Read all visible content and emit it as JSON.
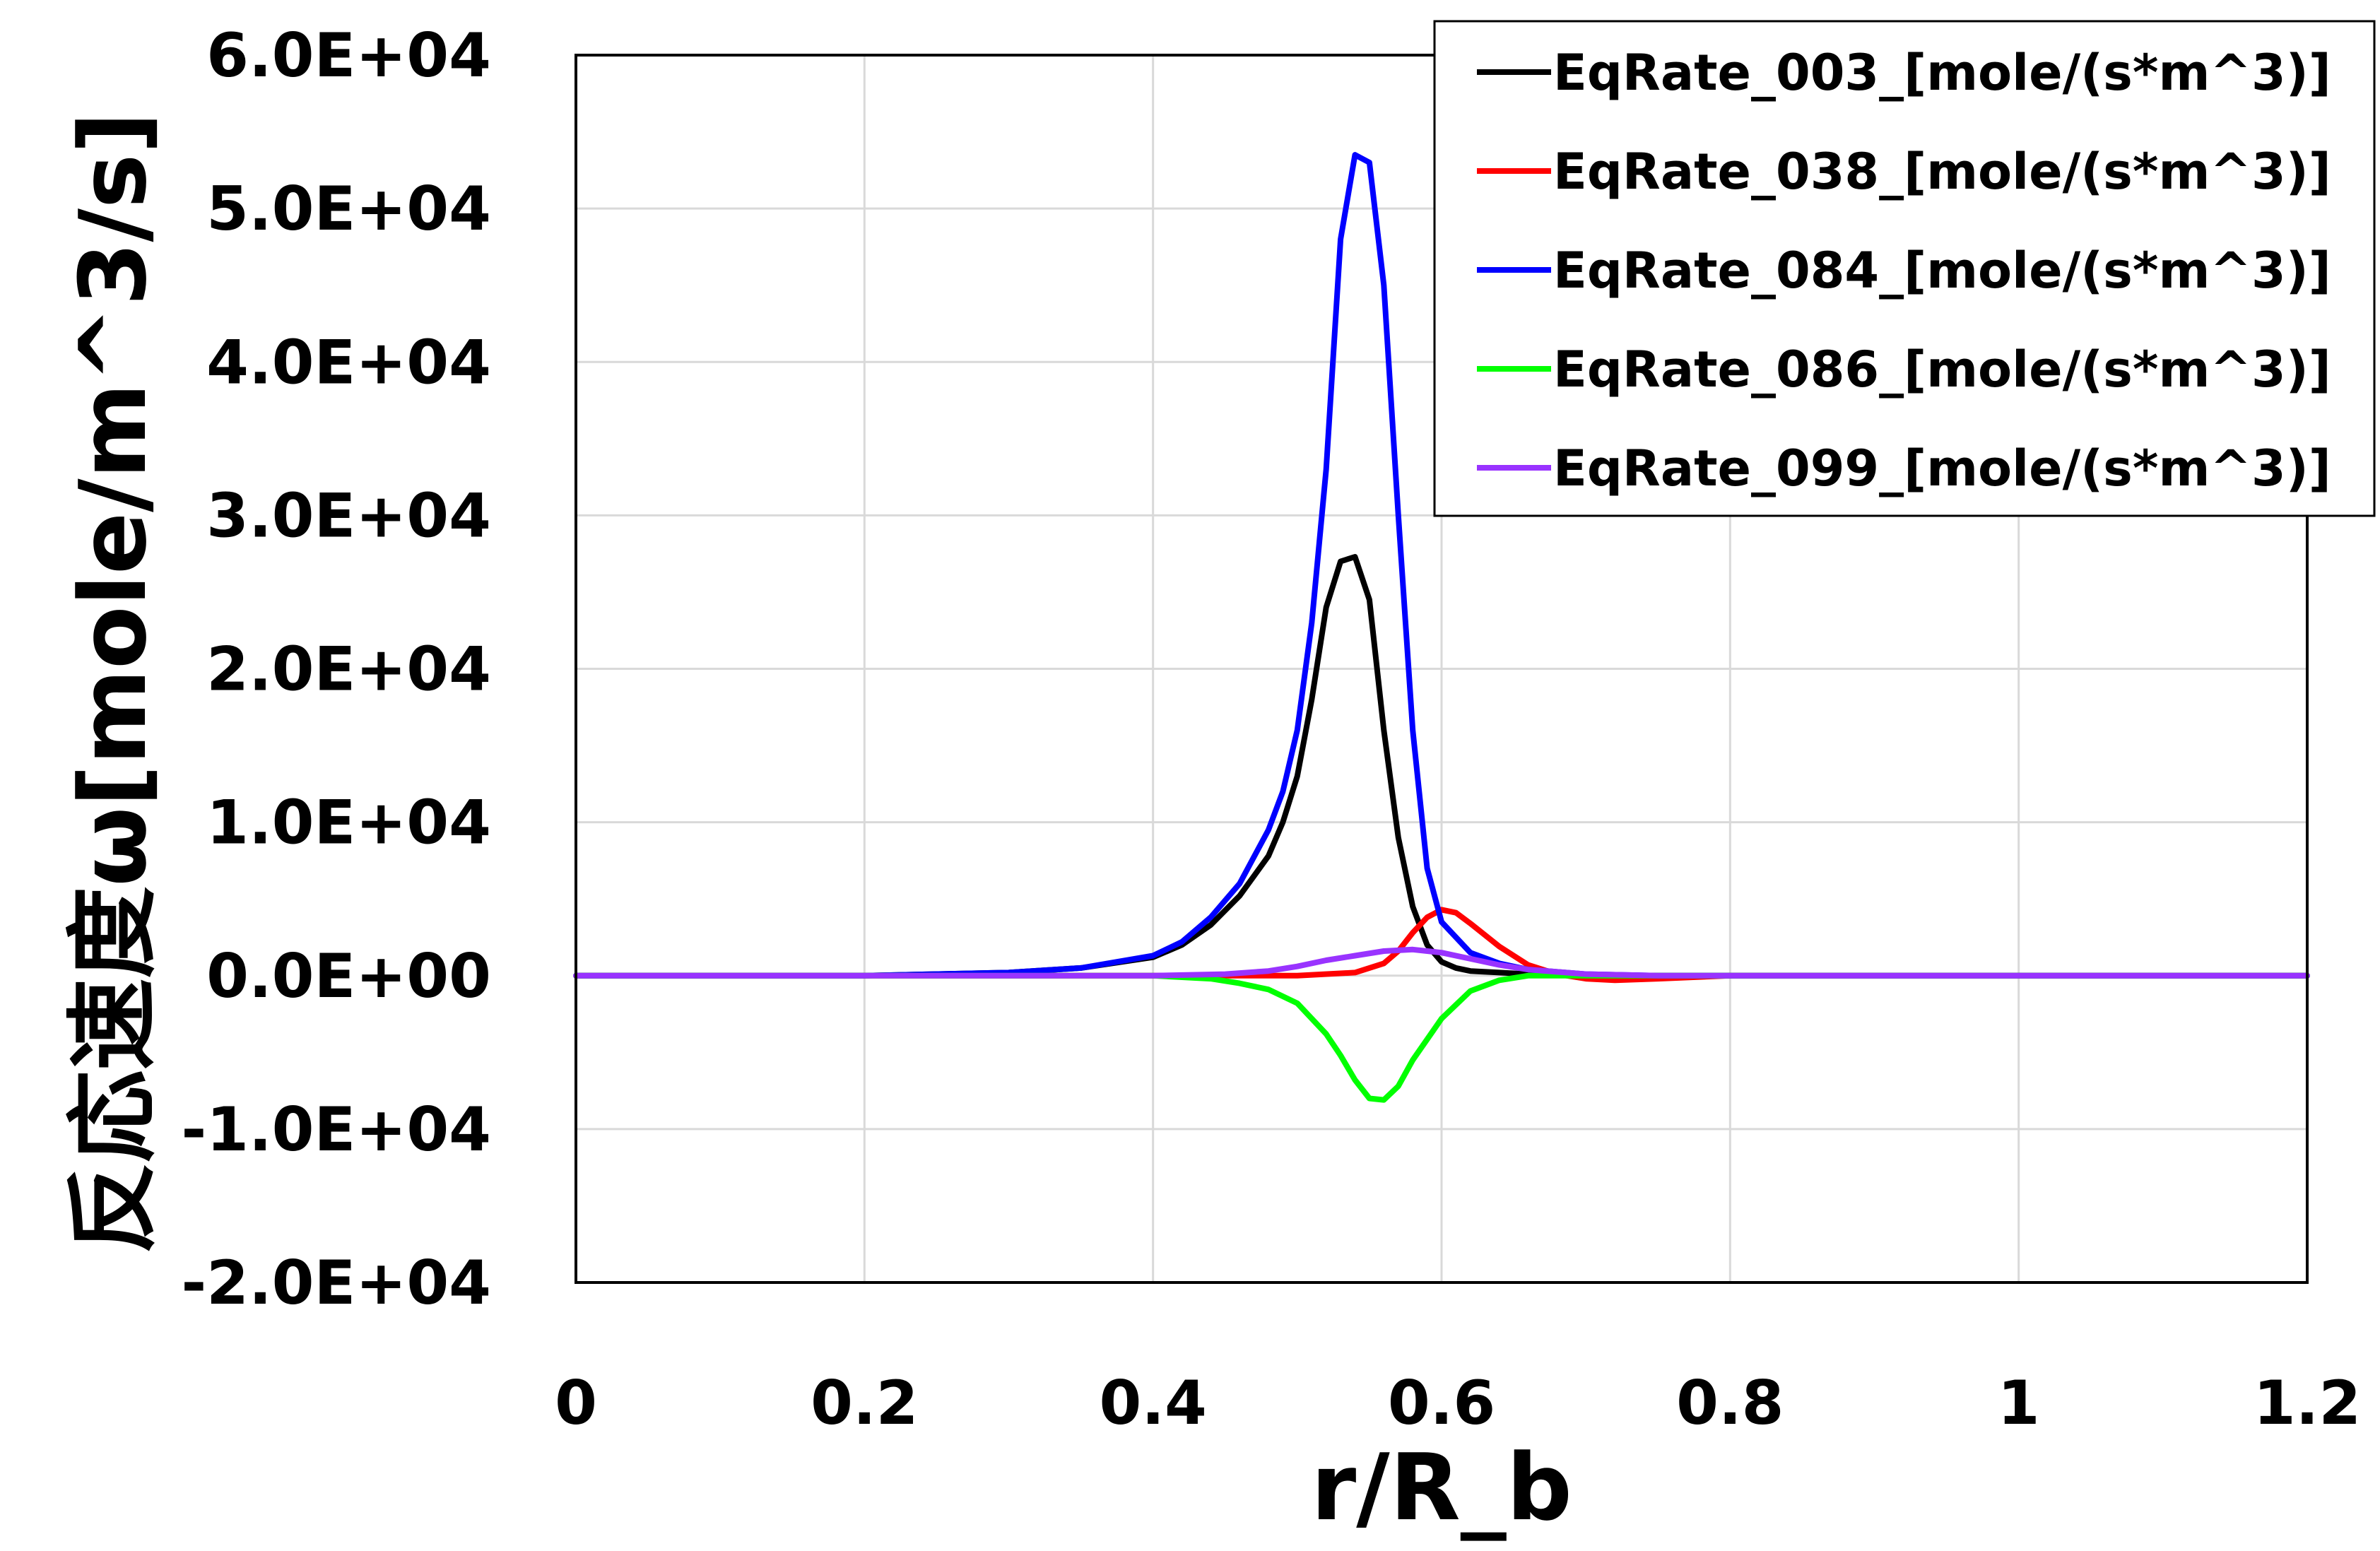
{
  "chart_data": {
    "type": "line",
    "title": "",
    "xlabel": "r/R_b",
    "ylabel": "反応速度ω[mole/m^3/s]",
    "xlim": [
      0,
      1.2
    ],
    "ylim": [
      -20000,
      60000
    ],
    "x_ticks": [
      {
        "value": 0,
        "label": "0"
      },
      {
        "value": 0.2,
        "label": "0.2"
      },
      {
        "value": 0.4,
        "label": "0.4"
      },
      {
        "value": 0.6,
        "label": "0.6"
      },
      {
        "value": 0.8,
        "label": "0.8"
      },
      {
        "value": 1.0,
        "label": "1"
      },
      {
        "value": 1.2,
        "label": "1.2"
      }
    ],
    "y_ticks": [
      {
        "value": -20000,
        "label": "-2.0E+04"
      },
      {
        "value": -10000,
        "label": "-1.0E+04"
      },
      {
        "value": 0,
        "label": "0.0E+00"
      },
      {
        "value": 10000,
        "label": "1.0E+04"
      },
      {
        "value": 20000,
        "label": "2.0E+04"
      },
      {
        "value": 30000,
        "label": "3.0E+04"
      },
      {
        "value": 40000,
        "label": "4.0E+04"
      },
      {
        "value": 50000,
        "label": "5.0E+04"
      },
      {
        "value": 60000,
        "label": "6.0E+04"
      }
    ],
    "grid": true,
    "legend_position": "top-right",
    "series": [
      {
        "name": "EqRate_003_[mole/(s*m^3)]",
        "color": "#000000",
        "x": [
          0,
          0.2,
          0.3,
          0.35,
          0.4,
          0.42,
          0.44,
          0.46,
          0.48,
          0.49,
          0.5,
          0.51,
          0.52,
          0.53,
          0.54,
          0.55,
          0.56,
          0.57,
          0.58,
          0.59,
          0.6,
          0.61,
          0.62,
          0.64,
          0.66,
          0.7,
          0.75,
          0.8,
          1.2
        ],
        "y": [
          0,
          0,
          200,
          500,
          1200,
          2000,
          3300,
          5200,
          7800,
          10000,
          13000,
          18000,
          24000,
          27000,
          27300,
          24500,
          16000,
          9000,
          4500,
          2000,
          900,
          500,
          300,
          200,
          100,
          50,
          0,
          0,
          0
        ]
      },
      {
        "name": "EqRate_038_[mole/(s*m^3)]",
        "color": "#ff0000",
        "x": [
          0,
          0.4,
          0.5,
          0.54,
          0.56,
          0.57,
          0.58,
          0.59,
          0.6,
          0.61,
          0.62,
          0.64,
          0.66,
          0.68,
          0.7,
          0.72,
          0.75,
          0.8,
          1.2
        ],
        "y": [
          0,
          0,
          0,
          200,
          800,
          1600,
          2800,
          3800,
          4300,
          4100,
          3400,
          1900,
          700,
          100,
          -200,
          -300,
          -200,
          0,
          0
        ]
      },
      {
        "name": "EqRate_084_[mole/(s*m^3)]",
        "color": "#0000ff",
        "x": [
          0,
          0.2,
          0.3,
          0.35,
          0.4,
          0.42,
          0.44,
          0.46,
          0.48,
          0.49,
          0.5,
          0.51,
          0.52,
          0.53,
          0.54,
          0.55,
          0.56,
          0.57,
          0.58,
          0.59,
          0.6,
          0.62,
          0.64,
          0.66,
          0.7,
          0.75,
          0.8,
          1.2
        ],
        "y": [
          0,
          0,
          200,
          500,
          1300,
          2200,
          3800,
          6000,
          9500,
          12000,
          16000,
          23000,
          33000,
          48000,
          53500,
          53000,
          45000,
          30000,
          16000,
          7000,
          3500,
          1500,
          800,
          400,
          100,
          0,
          0,
          0
        ]
      },
      {
        "name": "EqRate_086_[mole/(s*m^3)]",
        "color": "#00ff00",
        "x": [
          0,
          0.4,
          0.44,
          0.46,
          0.48,
          0.5,
          0.52,
          0.53,
          0.54,
          0.55,
          0.56,
          0.57,
          0.58,
          0.6,
          0.62,
          0.64,
          0.66,
          0.7,
          0.8,
          1.2
        ],
        "y": [
          0,
          0,
          -200,
          -500,
          -900,
          -1800,
          -3800,
          -5200,
          -6800,
          -8000,
          -8100,
          -7200,
          -5500,
          -2800,
          -1000,
          -300,
          0,
          0,
          0,
          0
        ]
      },
      {
        "name": "EqRate_099_[mole/(s*m^3)]",
        "color": "#9933ff",
        "x": [
          0,
          0.4,
          0.45,
          0.48,
          0.5,
          0.52,
          0.54,
          0.56,
          0.58,
          0.6,
          0.62,
          0.64,
          0.66,
          0.7,
          0.75,
          0.8,
          1.2
        ],
        "y": [
          0,
          0,
          100,
          300,
          600,
          1000,
          1300,
          1600,
          1700,
          1500,
          1100,
          700,
          400,
          100,
          0,
          0,
          0
        ]
      }
    ]
  }
}
